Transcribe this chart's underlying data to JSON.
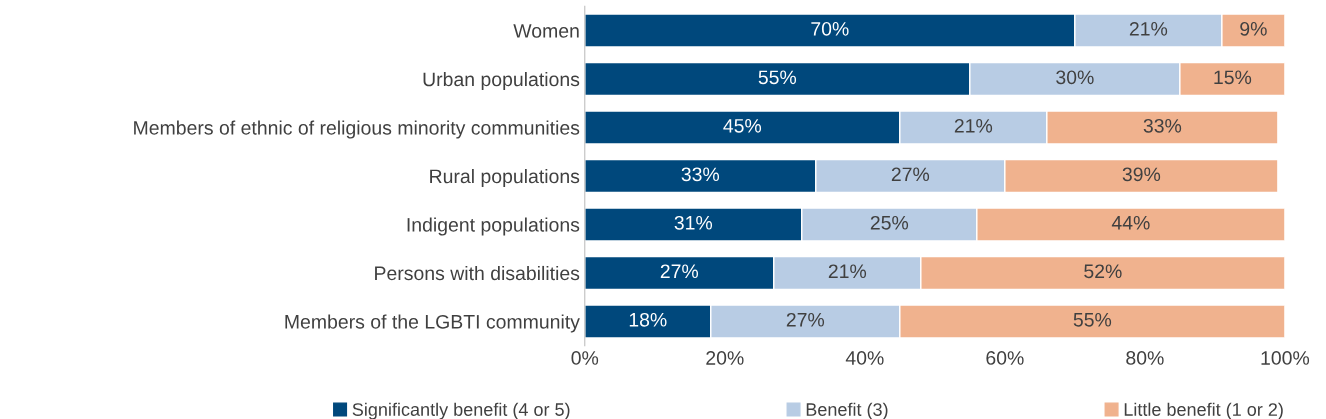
{
  "chart_data": {
    "type": "bar",
    "orientation": "horizontal",
    "stacked": true,
    "legend": "bottom",
    "grid": false,
    "categories": [
      "Women",
      "Urban populations",
      "Members of ethnic of religious minority communities",
      "Rural populations",
      "Indigent populations",
      "Persons with disabilities",
      "Members of the LGBTI community"
    ],
    "series": [
      {
        "name": "Significantly benefit (4 or 5)",
        "color": "#00487c",
        "values": [
          70,
          55,
          45,
          33,
          31,
          27,
          18
        ],
        "value_labels": [
          "70%",
          "55%",
          "45%",
          "33%",
          "31%",
          "27%",
          "18%"
        ]
      },
      {
        "name": "Benefit (3)",
        "color": "#b8cce4",
        "values": [
          21,
          30,
          21,
          27,
          25,
          21,
          27
        ],
        "value_labels": [
          "21%",
          "30%",
          "21%",
          "27%",
          "25%",
          "21%",
          "27%"
        ]
      },
      {
        "name": "Little benefit (1 or 2)",
        "color": "#f0b28e",
        "values": [
          9,
          15,
          33,
          39,
          44,
          52,
          55
        ],
        "value_labels": [
          "9%",
          "15%",
          "33%",
          "39%",
          "44%",
          "52%",
          "55%"
        ]
      }
    ],
    "xlim": [
      0,
      100
    ],
    "xticks": [
      {
        "value": 0,
        "label": "0%"
      },
      {
        "value": 20,
        "label": "20%"
      },
      {
        "value": 40,
        "label": "40%"
      },
      {
        "value": 60,
        "label": "60%"
      },
      {
        "value": 80,
        "label": "80%"
      },
      {
        "value": 100,
        "label": "100%"
      }
    ]
  }
}
